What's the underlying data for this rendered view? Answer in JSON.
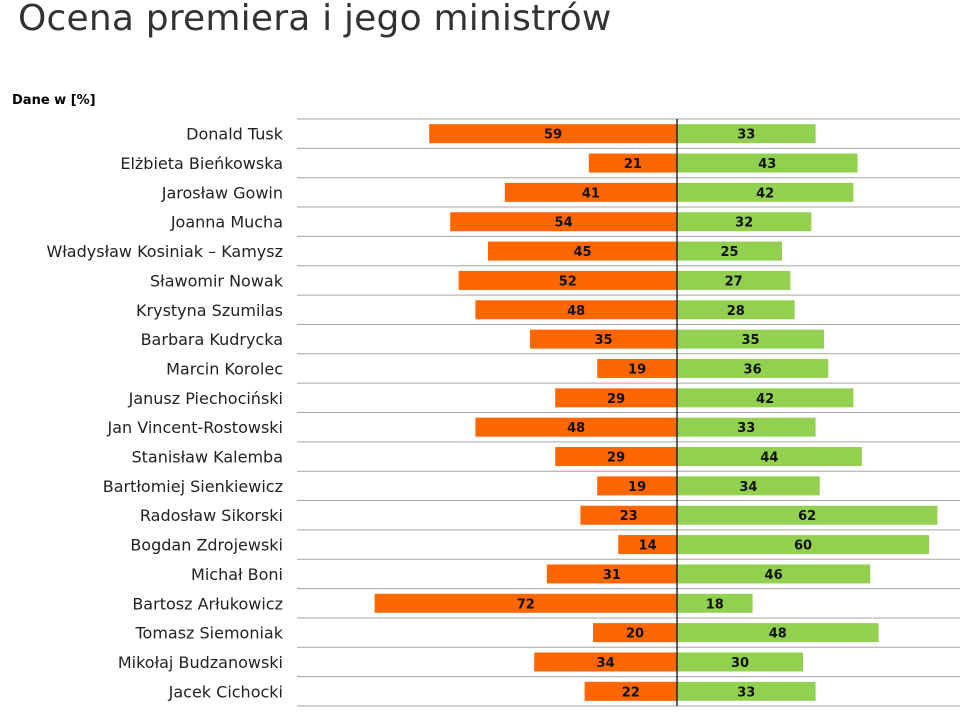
{
  "chart_data": {
    "type": "bar",
    "title": "Ocena premiera i jego ministrów",
    "subtitle": "Dane w [%]",
    "categories": [
      "Donald Tusk",
      "Elżbieta Bieńkowska",
      "Jarosław Gowin",
      "Joanna Mucha",
      "Władysław Kosiniak – Kamysz",
      "Sławomir Nowak",
      "Krystyna Szumilas",
      "Barbara Kudrycka",
      "Marcin Korolec",
      "Janusz Piechociński",
      "Jan Vincent-Rostowski",
      "Stanisław Kalemba",
      "Bartłomiej Sienkiewicz",
      "Radosław Sikorski",
      "Bogdan Zdrojewski",
      "Michał Boni",
      "Bartosz Arłukowicz",
      "Tomasz Siemoniak",
      "Mikołaj Budzanowski",
      "Jacek Cichocki"
    ],
    "series": [
      {
        "color": "#ff6600",
        "direction": "left",
        "values": [
          59,
          21,
          41,
          54,
          45,
          52,
          48,
          35,
          19,
          29,
          48,
          29,
          19,
          23,
          14,
          31,
          72,
          20,
          34,
          22
        ]
      },
      {
        "color": "#92d050",
        "direction": "right",
        "values": [
          33,
          43,
          42,
          32,
          25,
          27,
          28,
          35,
          36,
          42,
          33,
          44,
          34,
          62,
          60,
          46,
          18,
          48,
          30,
          33
        ]
      }
    ],
    "xlim": [
      -77,
      67
    ],
    "grid": "horizontal",
    "legend": "none"
  }
}
